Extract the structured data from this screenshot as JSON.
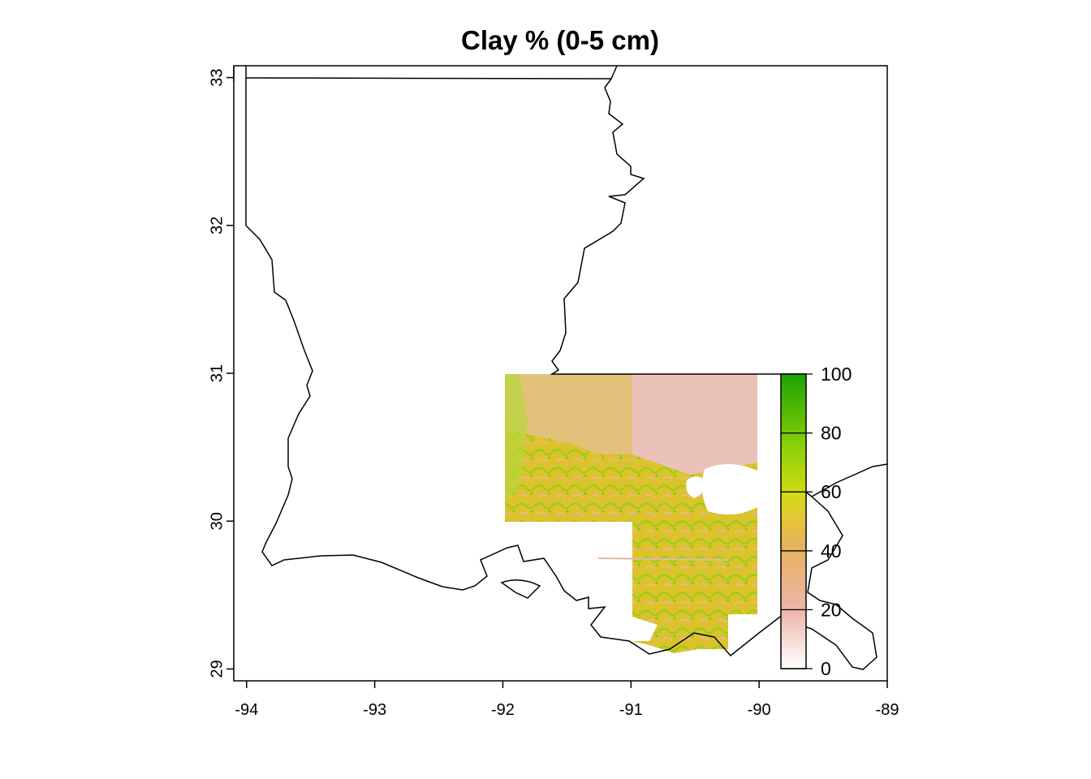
{
  "map": {
    "title": "Clay % (0-5 cm)",
    "type": "raster map",
    "x_axis": {
      "range": [
        -94.1,
        -89.0
      ],
      "ticks": [
        -94,
        -93,
        -92,
        -91,
        -90,
        -89
      ],
      "tick_labels": [
        "-94",
        "-93",
        "-92",
        "-91",
        "-90",
        "-89"
      ]
    },
    "y_axis": {
      "range": [
        28.92,
        33.08
      ],
      "ticks": [
        29,
        30,
        31,
        32,
        33
      ],
      "tick_labels": [
        "29",
        "30",
        "31",
        "32",
        "33"
      ]
    },
    "grid": false,
    "legend": {
      "placement": "right-inside",
      "range": [
        0,
        100
      ],
      "ticks": [
        0,
        20,
        40,
        60,
        80,
        100
      ],
      "tick_labels": [
        "0",
        "20",
        "40",
        "60",
        "80",
        "100"
      ],
      "colors": [
        "#ffffff",
        "#ecb4aa",
        "#e6c43a",
        "#a9d913",
        "#1aa300"
      ]
    },
    "colors": {
      "border": "#000000",
      "raster_low": "#e8c0b8",
      "raster_mid": "#dfc32a",
      "raster_high": "#6fcf18"
    }
  }
}
